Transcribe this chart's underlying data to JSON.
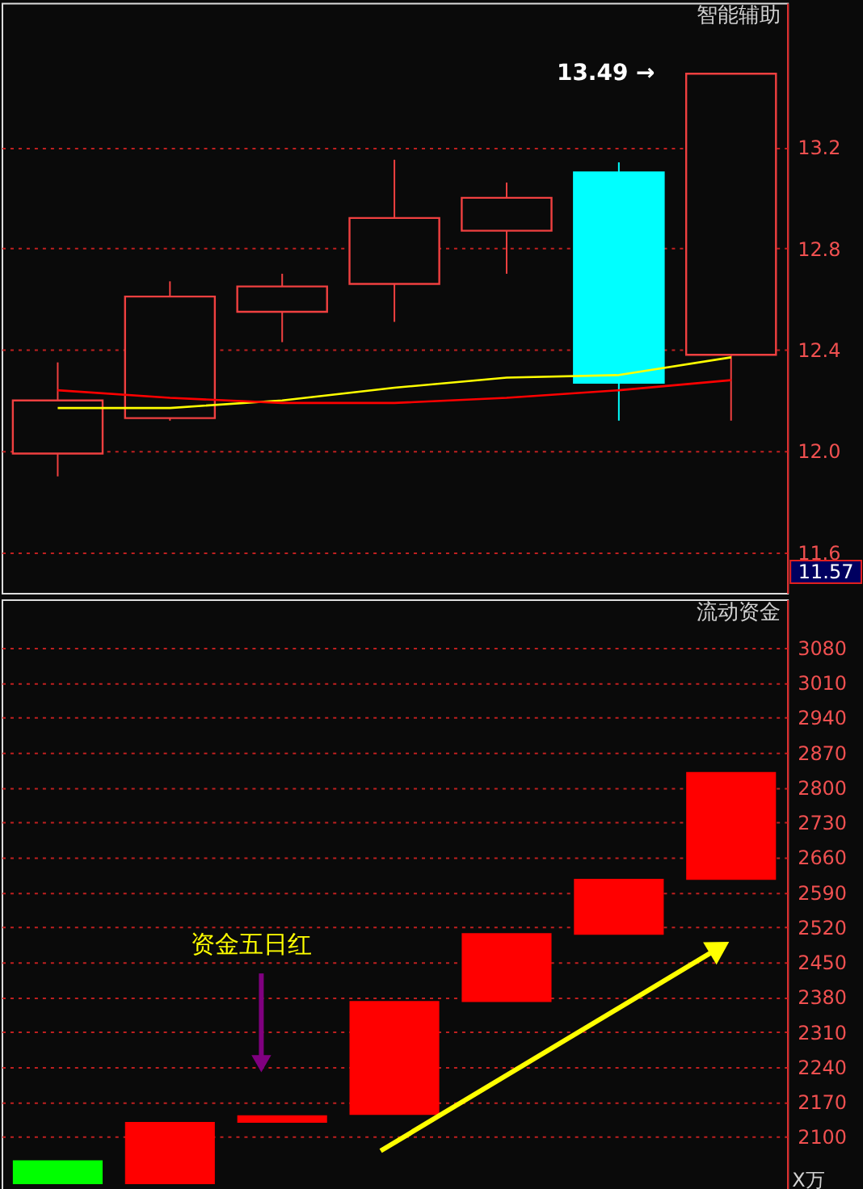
{
  "chart_data": [
    {
      "type": "candlestick",
      "title": "智能辅助",
      "categories": [
        null,
        null,
        null,
        null,
        null,
        null,
        null
      ],
      "ohlc": [
        [
          11.99,
          12.35,
          11.9,
          12.2
        ],
        [
          12.13,
          12.67,
          12.12,
          12.61
        ],
        [
          12.55,
          12.7,
          12.43,
          12.65
        ],
        [
          12.66,
          13.15,
          12.51,
          12.92
        ],
        [
          12.87,
          13.06,
          12.7,
          13.0
        ],
        [
          13.1,
          13.14,
          12.12,
          12.27
        ],
        [
          12.38,
          13.49,
          12.12,
          13.49
        ]
      ],
      "colors": [
        "#f04040",
        "#f04040",
        "#f04040",
        "#f04040",
        "#f04040",
        "#00ffff",
        "#f04040"
      ],
      "series": [
        {
          "type": "line",
          "color": "#ffff00",
          "values": [
            12.17,
            12.17,
            12.2,
            12.25,
            12.29,
            12.3,
            12.37
          ]
        },
        {
          "type": "line",
          "color": "#ff0000",
          "values": [
            12.24,
            12.21,
            12.19,
            12.19,
            12.21,
            12.24,
            12.28
          ]
        }
      ],
      "ylim": [
        11.44,
        13.77
      ],
      "yticks": [
        13.2,
        12.8,
        12.4,
        {
          "value": 12.0,
          "label": "12.0"
        },
        11.6
      ],
      "grid": "y",
      "annotations": [
        "13.49 →",
        "11.57"
      ]
    },
    {
      "type": "bar",
      "title": "流动资金",
      "ylabel": "X万",
      "categories": [
        null,
        null,
        null,
        null,
        null,
        null,
        null
      ],
      "base": [
        2005,
        2005,
        2128,
        2144,
        2370,
        2505,
        2615
      ],
      "values": [
        48,
        125,
        15,
        228,
        138,
        112,
        216
      ],
      "colors": [
        "#00ff00",
        "#ff0000",
        "#ff0000",
        "#ff0000",
        "#ff0000",
        "#ff0000",
        "#ff0000"
      ],
      "ylim": [
        1988,
        3177
      ],
      "yticks": [
        3080,
        3010,
        2940,
        2870,
        2800,
        2730,
        2660,
        2590,
        2520,
        2450,
        2380,
        2310,
        2240,
        2170,
        2100
      ],
      "grid": "y",
      "annotations": [
        "资金五日红"
      ]
    }
  ]
}
